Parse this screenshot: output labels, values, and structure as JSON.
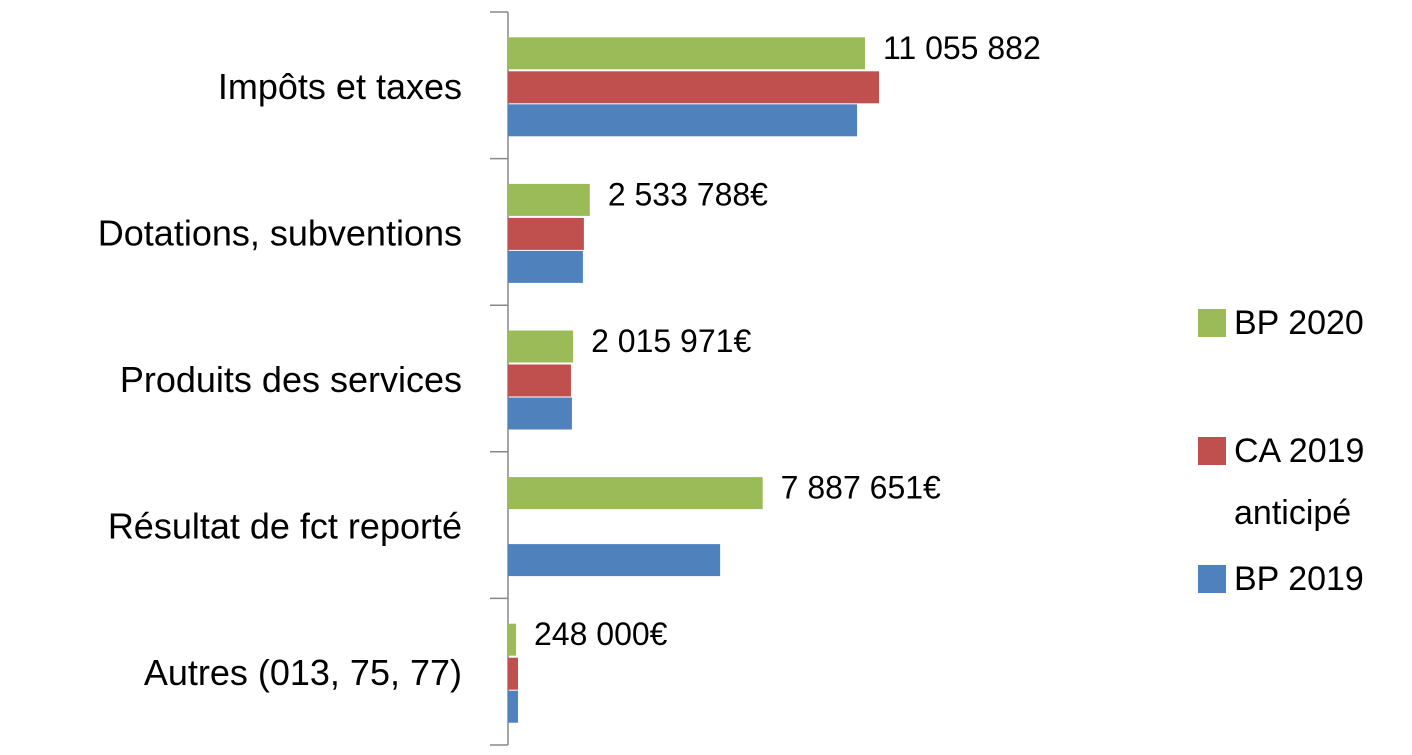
{
  "chart_data": {
    "type": "bar",
    "orientation": "horizontal",
    "categories": [
      "Impôts et taxes",
      "Dotations, subventions",
      "Produits des services",
      "Résultat de fct reporté",
      "Autres (013, 75, 77)"
    ],
    "series": [
      {
        "name": "BP 2020",
        "color": "#9bbb59",
        "values": [
          11055882,
          2533788,
          2015971,
          7887651,
          248000
        ],
        "value_labels": [
          "11 055 882",
          "2 533 788€",
          "2 015 971€",
          "7 887 651€",
          "248 000€"
        ]
      },
      {
        "name": "CA 2019 anticipé",
        "color": "#c0504d",
        "values": [
          11490000,
          2350000,
          1950000,
          null,
          310000
        ]
      },
      {
        "name": "BP 2019",
        "color": "#4f81bd",
        "values": [
          10810000,
          2320000,
          1980000,
          6570000,
          310000
        ]
      }
    ]
  }
}
